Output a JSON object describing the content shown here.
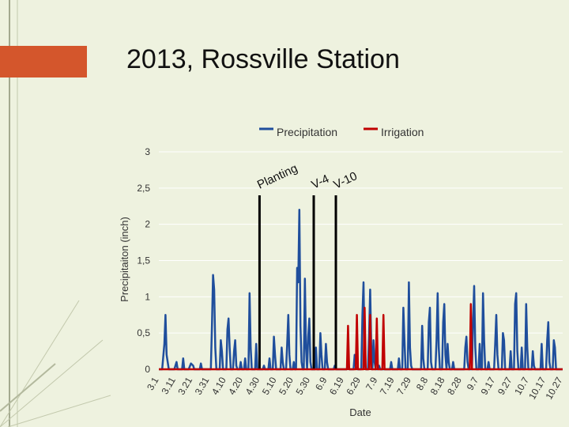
{
  "slide": {
    "title": "2013, Rossville Station"
  },
  "chart_data": {
    "type": "line",
    "title": "",
    "xlabel": "Date",
    "ylabel": "Precipitaiton (inch)",
    "ylim": [
      0,
      3
    ],
    "y_ticks": [
      "0",
      "0,5",
      "1",
      "1,5",
      "2",
      "2,5",
      "3"
    ],
    "x_ticks": [
      "3.1",
      "3.11",
      "3.21",
      "3.31",
      "4.10",
      "4.20",
      "4.30",
      "5.10",
      "5.20",
      "5.30",
      "6.9",
      "6.19",
      "6.29",
      "7.9",
      "7.19",
      "7.29",
      "8.8",
      "8.18",
      "8.28",
      "9.7",
      "9.17",
      "9.27",
      "10.7",
      "10.17",
      "10.27"
    ],
    "x_range_days": [
      0,
      244
    ],
    "legend": {
      "position": "top"
    },
    "series": [
      {
        "name": "Precipitation",
        "color": "#1f4e9c",
        "points": [
          [
            0,
            0
          ],
          [
            3,
            0
          ],
          [
            5,
            0.35
          ],
          [
            6,
            0.75
          ],
          [
            7,
            0.2
          ],
          [
            9,
            0
          ],
          [
            14,
            0
          ],
          [
            16,
            0.1
          ],
          [
            17,
            0
          ],
          [
            21,
            0
          ],
          [
            22,
            0.15
          ],
          [
            23,
            0
          ],
          [
            27,
            0
          ],
          [
            29,
            0.08
          ],
          [
            31,
            0.05
          ],
          [
            32,
            0
          ],
          [
            37,
            0
          ],
          [
            38,
            0.08
          ],
          [
            39,
            0
          ],
          [
            47,
            0
          ],
          [
            48,
            0.6
          ],
          [
            49,
            1.3
          ],
          [
            50,
            1.1
          ],
          [
            51,
            0.3
          ],
          [
            52,
            0
          ],
          [
            55,
            0
          ],
          [
            56,
            0.4
          ],
          [
            57,
            0.25
          ],
          [
            58,
            0
          ],
          [
            61,
            0
          ],
          [
            62,
            0.55
          ],
          [
            63,
            0.7
          ],
          [
            64,
            0.3
          ],
          [
            65,
            0
          ],
          [
            67,
            0
          ],
          [
            68,
            0.25
          ],
          [
            69,
            0.4
          ],
          [
            70,
            0.05
          ],
          [
            71,
            0
          ],
          [
            73,
            0
          ],
          [
            74,
            0.1
          ],
          [
            75,
            0
          ],
          [
            77,
            0
          ],
          [
            78,
            0.15
          ],
          [
            79,
            0
          ],
          [
            81,
            0
          ],
          [
            82,
            1.05
          ],
          [
            83,
            0.3
          ],
          [
            84,
            0
          ],
          [
            87,
            0
          ],
          [
            88,
            0.35
          ],
          [
            89,
            0
          ],
          [
            94,
            0
          ],
          [
            95,
            0.05
          ],
          [
            96,
            0
          ],
          [
            99,
            0
          ],
          [
            100,
            0.15
          ],
          [
            101,
            0
          ],
          [
            103,
            0
          ],
          [
            104,
            0.45
          ],
          [
            105,
            0.2
          ],
          [
            106,
            0
          ],
          [
            110,
            0
          ],
          [
            111,
            0.3
          ],
          [
            112,
            0.1
          ],
          [
            113,
            0
          ],
          [
            115,
            0
          ],
          [
            116,
            0.35
          ],
          [
            117,
            0.75
          ],
          [
            118,
            0.2
          ],
          [
            119,
            0
          ],
          [
            121,
            0
          ],
          [
            122,
            0.1
          ],
          [
            123,
            0
          ],
          [
            124,
            0
          ],
          [
            125,
            1.4
          ],
          [
            126,
            1.2
          ],
          [
            127,
            2.2
          ],
          [
            128,
            0.6
          ],
          [
            129,
            0.1
          ],
          [
            130,
            0
          ],
          [
            131,
            0
          ],
          [
            132,
            1.25
          ],
          [
            133,
            0.3
          ],
          [
            134,
            0
          ],
          [
            135,
            0.45
          ],
          [
            136,
            0.7
          ],
          [
            137,
            0.1
          ],
          [
            138,
            0
          ],
          [
            141,
            0
          ],
          [
            142,
            0.3
          ],
          [
            143,
            0
          ],
          [
            145,
            0
          ],
          [
            146,
            0.5
          ],
          [
            147,
            0.2
          ],
          [
            148,
            0
          ],
          [
            150,
            0
          ],
          [
            151,
            0.35
          ],
          [
            152,
            0.1
          ],
          [
            153,
            0
          ],
          [
            158,
            0
          ],
          [
            159,
            0.05
          ],
          [
            160,
            0
          ],
          [
            170,
            0
          ],
          [
            171,
            0.1
          ],
          [
            172,
            0
          ],
          [
            176,
            0
          ],
          [
            177,
            0.2
          ],
          [
            178,
            0.05
          ],
          [
            179,
            0
          ],
          [
            183,
            0
          ],
          [
            184,
            0.75
          ],
          [
            185,
            1.2
          ],
          [
            186,
            0.1
          ],
          [
            187,
            0
          ],
          [
            189,
            0
          ],
          [
            190,
            0.45
          ],
          [
            191,
            1.1
          ],
          [
            192,
            0.3
          ],
          [
            193,
            0
          ],
          [
            194,
            0.4
          ],
          [
            195,
            0.1
          ],
          [
            196,
            0
          ],
          [
            198,
            0
          ],
          [
            199,
            0.05
          ],
          [
            200,
            0
          ],
          [
            209,
            0
          ],
          [
            210,
            0.1
          ],
          [
            211,
            0
          ],
          [
            216,
            0
          ],
          [
            217,
            0.15
          ],
          [
            218,
            0
          ],
          [
            220,
            0
          ],
          [
            221,
            0.85
          ],
          [
            222,
            0.4
          ],
          [
            223,
            0
          ],
          [
            225,
            0
          ],
          [
            226,
            1.2
          ],
          [
            227,
            0.3
          ],
          [
            228,
            0.05
          ],
          [
            229,
            0
          ],
          [
            237,
            0
          ],
          [
            238,
            0.6
          ],
          [
            239,
            0.15
          ],
          [
            240,
            0
          ],
          [
            243,
            0
          ],
          [
            244,
            0.65
          ],
          [
            245,
            0.85
          ],
          [
            246,
            0.1
          ],
          [
            247,
            0
          ],
          [
            250,
            0
          ],
          [
            251,
            0.4
          ],
          [
            252,
            1.05
          ],
          [
            253,
            0.3
          ],
          [
            254,
            0
          ],
          [
            256,
            0
          ],
          [
            257,
            0.65
          ],
          [
            258,
            0.9
          ],
          [
            259,
            0.2
          ],
          [
            260,
            0
          ],
          [
            261,
            0.35
          ],
          [
            262,
            0.1
          ],
          [
            263,
            0
          ],
          [
            265,
            0
          ],
          [
            266,
            0.1
          ],
          [
            267,
            0
          ],
          [
            276,
            0
          ],
          [
            277,
            0.3
          ],
          [
            278,
            0.45
          ],
          [
            279,
            0.1
          ],
          [
            280,
            0
          ],
          [
            283,
            0
          ],
          [
            284,
            0.65
          ],
          [
            285,
            1.15
          ],
          [
            286,
            0.3
          ],
          [
            287,
            0
          ],
          [
            289,
            0
          ],
          [
            290,
            0.35
          ],
          [
            291,
            0
          ],
          [
            292,
            0
          ],
          [
            293,
            1.05
          ],
          [
            294,
            0.4
          ],
          [
            295,
            0
          ],
          [
            297,
            0
          ],
          [
            298,
            0.1
          ],
          [
            299,
            0
          ],
          [
            303,
            0
          ],
          [
            304,
            0.35
          ],
          [
            305,
            0.75
          ],
          [
            306,
            0.2
          ],
          [
            307,
            0
          ],
          [
            310,
            0
          ],
          [
            311,
            0.5
          ],
          [
            312,
            0.4
          ],
          [
            313,
            0
          ],
          [
            317,
            0
          ],
          [
            318,
            0.25
          ],
          [
            319,
            0
          ],
          [
            321,
            0
          ],
          [
            322,
            0.9
          ],
          [
            323,
            1.05
          ],
          [
            324,
            0.25
          ],
          [
            325,
            0
          ],
          [
            327,
            0
          ],
          [
            328,
            0.3
          ],
          [
            329,
            0
          ],
          [
            331,
            0
          ],
          [
            332,
            0.9
          ],
          [
            333,
            0.3
          ],
          [
            334,
            0
          ],
          [
            337,
            0
          ],
          [
            338,
            0.25
          ],
          [
            339,
            0.05
          ],
          [
            340,
            0
          ],
          [
            345,
            0
          ],
          [
            346,
            0.35
          ],
          [
            347,
            0
          ],
          [
            350,
            0
          ],
          [
            351,
            0.4
          ],
          [
            352,
            0.65
          ],
          [
            353,
            0.1
          ],
          [
            354,
            0
          ],
          [
            356,
            0
          ],
          [
            357,
            0.4
          ],
          [
            358,
            0.3
          ],
          [
            359,
            0
          ],
          [
            365,
            0
          ]
        ]
      },
      {
        "name": "Irrigation",
        "color": "#c00000",
        "points": [
          [
            0,
            0
          ],
          [
            170,
            0
          ],
          [
            171,
            0.6
          ],
          [
            172,
            0
          ],
          [
            178,
            0
          ],
          [
            179,
            0.75
          ],
          [
            180,
            0
          ],
          [
            185,
            0
          ],
          [
            186,
            0.85
          ],
          [
            187,
            0
          ],
          [
            190,
            0
          ],
          [
            191,
            0.75
          ],
          [
            192,
            0
          ],
          [
            196,
            0
          ],
          [
            197,
            0.7
          ],
          [
            198,
            0
          ],
          [
            202,
            0
          ],
          [
            203,
            0.75
          ],
          [
            204,
            0
          ],
          [
            281,
            0
          ],
          [
            282,
            0.9
          ],
          [
            283,
            0
          ],
          [
            365,
            0
          ]
        ]
      }
    ],
    "event_lines": [
      {
        "label": "Planting",
        "x": 91,
        "y": 2.4,
        "color": "#000000"
      },
      {
        "label": "V-4",
        "x": 140,
        "y": 2.4,
        "color": "#000000"
      },
      {
        "label": "V-10",
        "x": 160,
        "y": 2.4,
        "color": "#000000"
      }
    ]
  }
}
